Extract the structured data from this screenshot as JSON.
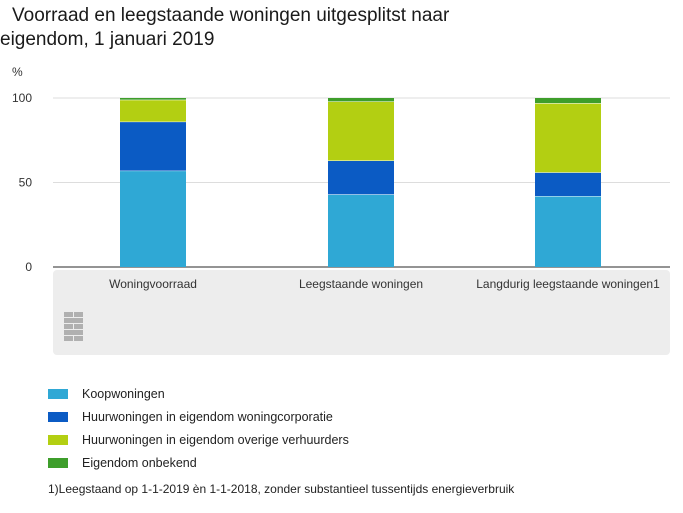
{
  "title_line1": "Voorraad en leegstaande woningen uitgesplitst naar",
  "title_line2": "eigendom, 1 januari 2019",
  "footnote": "1)Leegstaand op 1-1-2019 èn 1-1-2018, zonder substantieel tussentijds energieverbruik",
  "logo_icon": "cbs-logo-icon",
  "chart_data": {
    "type": "bar",
    "stacked": true,
    "title": "Voorraad en leegstaande woningen uitgesplitst naar eigendom, 1 januari 2019",
    "ylabel": "%",
    "ylim": [
      0,
      100
    ],
    "yticks": [
      0,
      50,
      100
    ],
    "grid": true,
    "categories": [
      "Woningvoorraad",
      "Leegstaande woningen",
      "Langdurig leegstaande woningen1"
    ],
    "series": [
      {
        "name": "Koopwoningen",
        "color": "#2fa8d5",
        "values": [
          57,
          43,
          42
        ]
      },
      {
        "name": "Huurwoningen in eigendom woningcorporatie",
        "color": "#0b5bc4",
        "values": [
          29,
          20,
          14
        ]
      },
      {
        "name": "Huurwoningen in eigendom overige verhuurders",
        "color": "#b3cf12",
        "values": [
          13,
          35,
          41
        ]
      },
      {
        "name": "Eigendom onbekend",
        "color": "#3e9e2b",
        "values": [
          1,
          2,
          3
        ]
      }
    ]
  }
}
